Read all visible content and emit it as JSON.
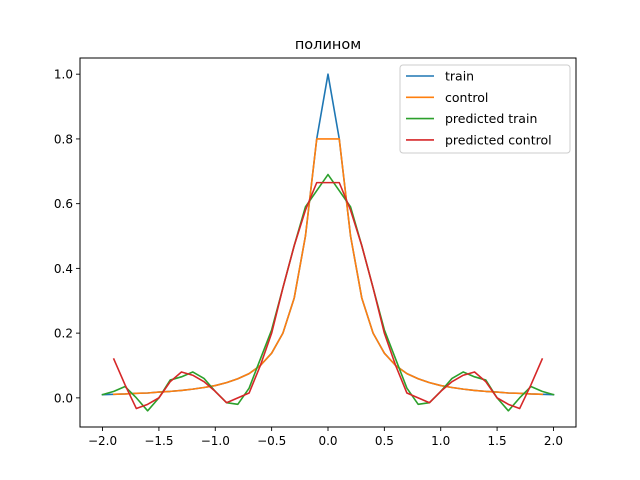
{
  "chart_data": {
    "type": "line",
    "title": "полином",
    "xlabel": "",
    "ylabel": "",
    "xlim": [
      -2.2,
      2.2
    ],
    "ylim": [
      -0.09,
      1.05
    ],
    "xticks": [
      -2.0,
      -1.5,
      -1.0,
      -0.5,
      0.0,
      0.5,
      1.0,
      1.5,
      2.0
    ],
    "xtick_labels": [
      "−2.0",
      "−1.5",
      "−1.0",
      "−0.5",
      "0.0",
      "0.5",
      "1.0",
      "1.5",
      "2.0"
    ],
    "yticks": [
      0.0,
      0.2,
      0.4,
      0.6,
      0.8,
      1.0
    ],
    "ytick_labels": [
      "0.0",
      "0.2",
      "0.4",
      "0.6",
      "0.8",
      "1.0"
    ],
    "legend_position": "top-right",
    "grid": false,
    "series": [
      {
        "name": "train",
        "color": "#1f77b4",
        "x": [
          -2.0,
          -1.9,
          -1.8,
          -1.7,
          -1.6,
          -1.5,
          -1.4,
          -1.3,
          -1.2,
          -1.1,
          -1.0,
          -0.9,
          -0.8,
          -0.7,
          -0.6,
          -0.5,
          -0.4,
          -0.3,
          -0.2,
          -0.1,
          0.0,
          0.1,
          0.2,
          0.3,
          0.4,
          0.5,
          0.6,
          0.7,
          0.8,
          0.9,
          1.0,
          1.1,
          1.2,
          1.3,
          1.4,
          1.5,
          1.6,
          1.7,
          1.8,
          1.9,
          2.0
        ],
        "y": [
          0.01,
          0.011,
          0.012,
          0.014,
          0.015,
          0.018,
          0.02,
          0.023,
          0.027,
          0.032,
          0.038,
          0.047,
          0.059,
          0.075,
          0.1,
          0.138,
          0.2,
          0.308,
          0.5,
          0.8,
          1.0,
          0.8,
          0.5,
          0.308,
          0.2,
          0.138,
          0.1,
          0.075,
          0.059,
          0.047,
          0.038,
          0.032,
          0.027,
          0.023,
          0.02,
          0.018,
          0.015,
          0.014,
          0.012,
          0.011,
          0.01
        ]
      },
      {
        "name": "control",
        "color": "#ff7f0e",
        "x": [
          -1.9,
          -1.8,
          -1.7,
          -1.6,
          -1.5,
          -1.4,
          -1.3,
          -1.2,
          -1.1,
          -1.0,
          -0.9,
          -0.8,
          -0.7,
          -0.6,
          -0.5,
          -0.4,
          -0.3,
          -0.2,
          -0.1,
          0.0,
          0.1,
          0.2,
          0.3,
          0.4,
          0.5,
          0.6,
          0.7,
          0.8,
          0.9,
          1.0,
          1.1,
          1.2,
          1.3,
          1.4,
          1.5,
          1.6,
          1.7,
          1.8,
          1.9
        ],
        "y": [
          0.011,
          0.012,
          0.014,
          0.015,
          0.018,
          0.02,
          0.023,
          0.027,
          0.032,
          0.038,
          0.047,
          0.059,
          0.075,
          0.1,
          0.138,
          0.2,
          0.308,
          0.5,
          0.8,
          0.8,
          0.8,
          0.5,
          0.308,
          0.2,
          0.138,
          0.1,
          0.075,
          0.059,
          0.047,
          0.038,
          0.032,
          0.027,
          0.023,
          0.02,
          0.018,
          0.015,
          0.014,
          0.012,
          0.011
        ]
      },
      {
        "name": "predicted train",
        "color": "#2ca02c",
        "x": [
          -2.0,
          -1.9,
          -1.8,
          -1.7,
          -1.6,
          -1.5,
          -1.4,
          -1.3,
          -1.2,
          -1.1,
          -1.0,
          -0.9,
          -0.8,
          -0.7,
          -0.6,
          -0.5,
          -0.4,
          -0.3,
          -0.2,
          -0.1,
          0.0,
          0.1,
          0.2,
          0.3,
          0.4,
          0.5,
          0.6,
          0.7,
          0.8,
          0.9,
          1.0,
          1.1,
          1.2,
          1.3,
          1.4,
          1.5,
          1.6,
          1.7,
          1.8,
          1.9,
          2.0
        ],
        "y": [
          0.01,
          0.02,
          0.035,
          0.0,
          -0.04,
          0.0,
          0.055,
          0.065,
          0.08,
          0.06,
          0.02,
          -0.015,
          -0.02,
          0.03,
          0.12,
          0.21,
          0.34,
          0.47,
          0.59,
          0.64,
          0.69,
          0.64,
          0.59,
          0.47,
          0.34,
          0.21,
          0.12,
          0.03,
          -0.02,
          -0.015,
          0.02,
          0.06,
          0.08,
          0.065,
          0.055,
          0.0,
          -0.04,
          0.0,
          0.035,
          0.02,
          0.01
        ]
      },
      {
        "name": "predicted control",
        "color": "#d62728",
        "x": [
          -1.9,
          -1.8,
          -1.7,
          -1.6,
          -1.5,
          -1.4,
          -1.3,
          -1.2,
          -1.1,
          -1.0,
          -0.9,
          -0.8,
          -0.7,
          -0.6,
          -0.5,
          -0.4,
          -0.3,
          -0.2,
          -0.1,
          0.0,
          0.1,
          0.2,
          0.3,
          0.4,
          0.5,
          0.6,
          0.7,
          0.8,
          0.9,
          1.0,
          1.1,
          1.2,
          1.3,
          1.4,
          1.5,
          1.6,
          1.7,
          1.8,
          1.9
        ],
        "y": [
          0.12,
          0.04,
          -0.033,
          -0.02,
          0.0,
          0.05,
          0.08,
          0.07,
          0.05,
          0.02,
          -0.015,
          0.0,
          0.015,
          0.1,
          0.2,
          0.34,
          0.47,
          0.58,
          0.665,
          0.665,
          0.665,
          0.58,
          0.47,
          0.34,
          0.2,
          0.1,
          0.015,
          0.0,
          -0.015,
          0.02,
          0.05,
          0.07,
          0.08,
          0.05,
          0.0,
          -0.02,
          -0.033,
          0.04,
          0.12
        ]
      }
    ]
  }
}
